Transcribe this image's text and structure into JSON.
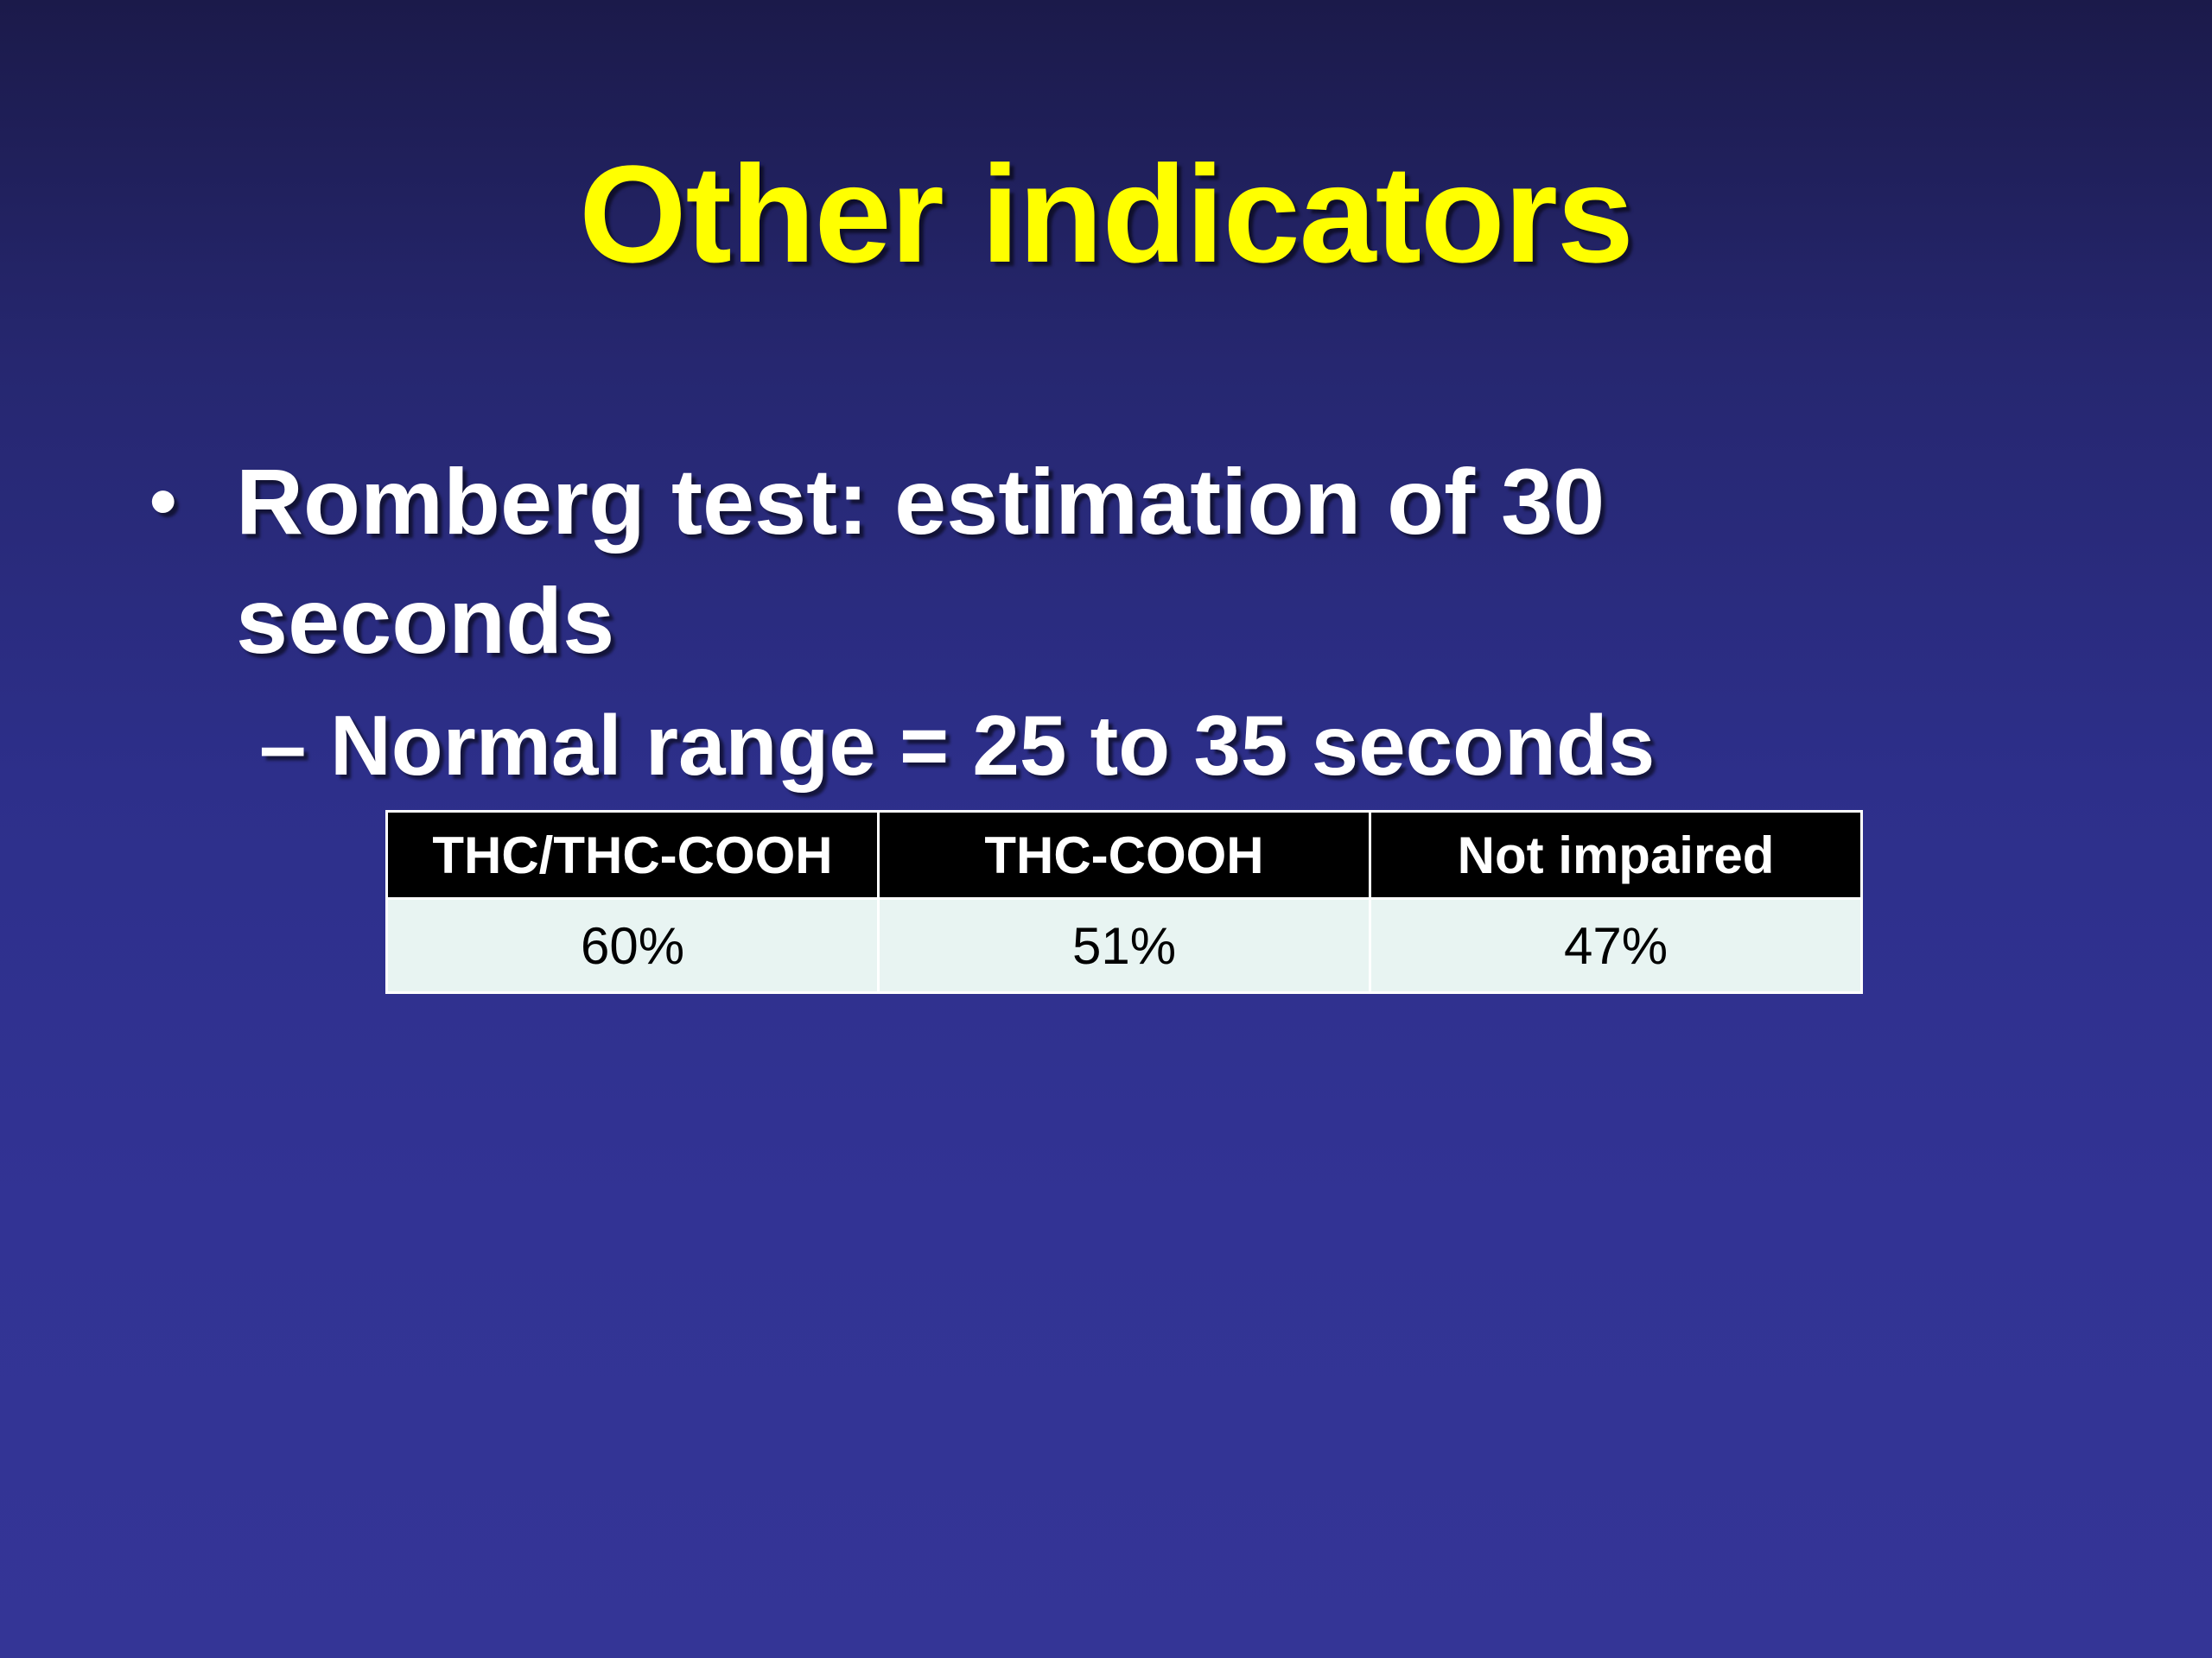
{
  "slide": {
    "title": "Other indicators",
    "bullet": {
      "symbol": "•",
      "text": "Romberg test: estimation of 30 seconds"
    },
    "subbullet": {
      "symbol": "–",
      "text": "Normal range = 25 to 35 seconds"
    },
    "table": {
      "headers": [
        "THC/THC-COOH",
        "THC-COOH",
        "Not impaired"
      ],
      "rows": [
        [
          "60%",
          "51%",
          "47%"
        ]
      ]
    },
    "colors": {
      "title": "#ffff00",
      "text": "#ffffff",
      "background_top": "#1b1a4a",
      "background_bottom": "#343596",
      "table_header_bg": "#000000",
      "table_cell_bg": "#e8f4f2"
    }
  }
}
